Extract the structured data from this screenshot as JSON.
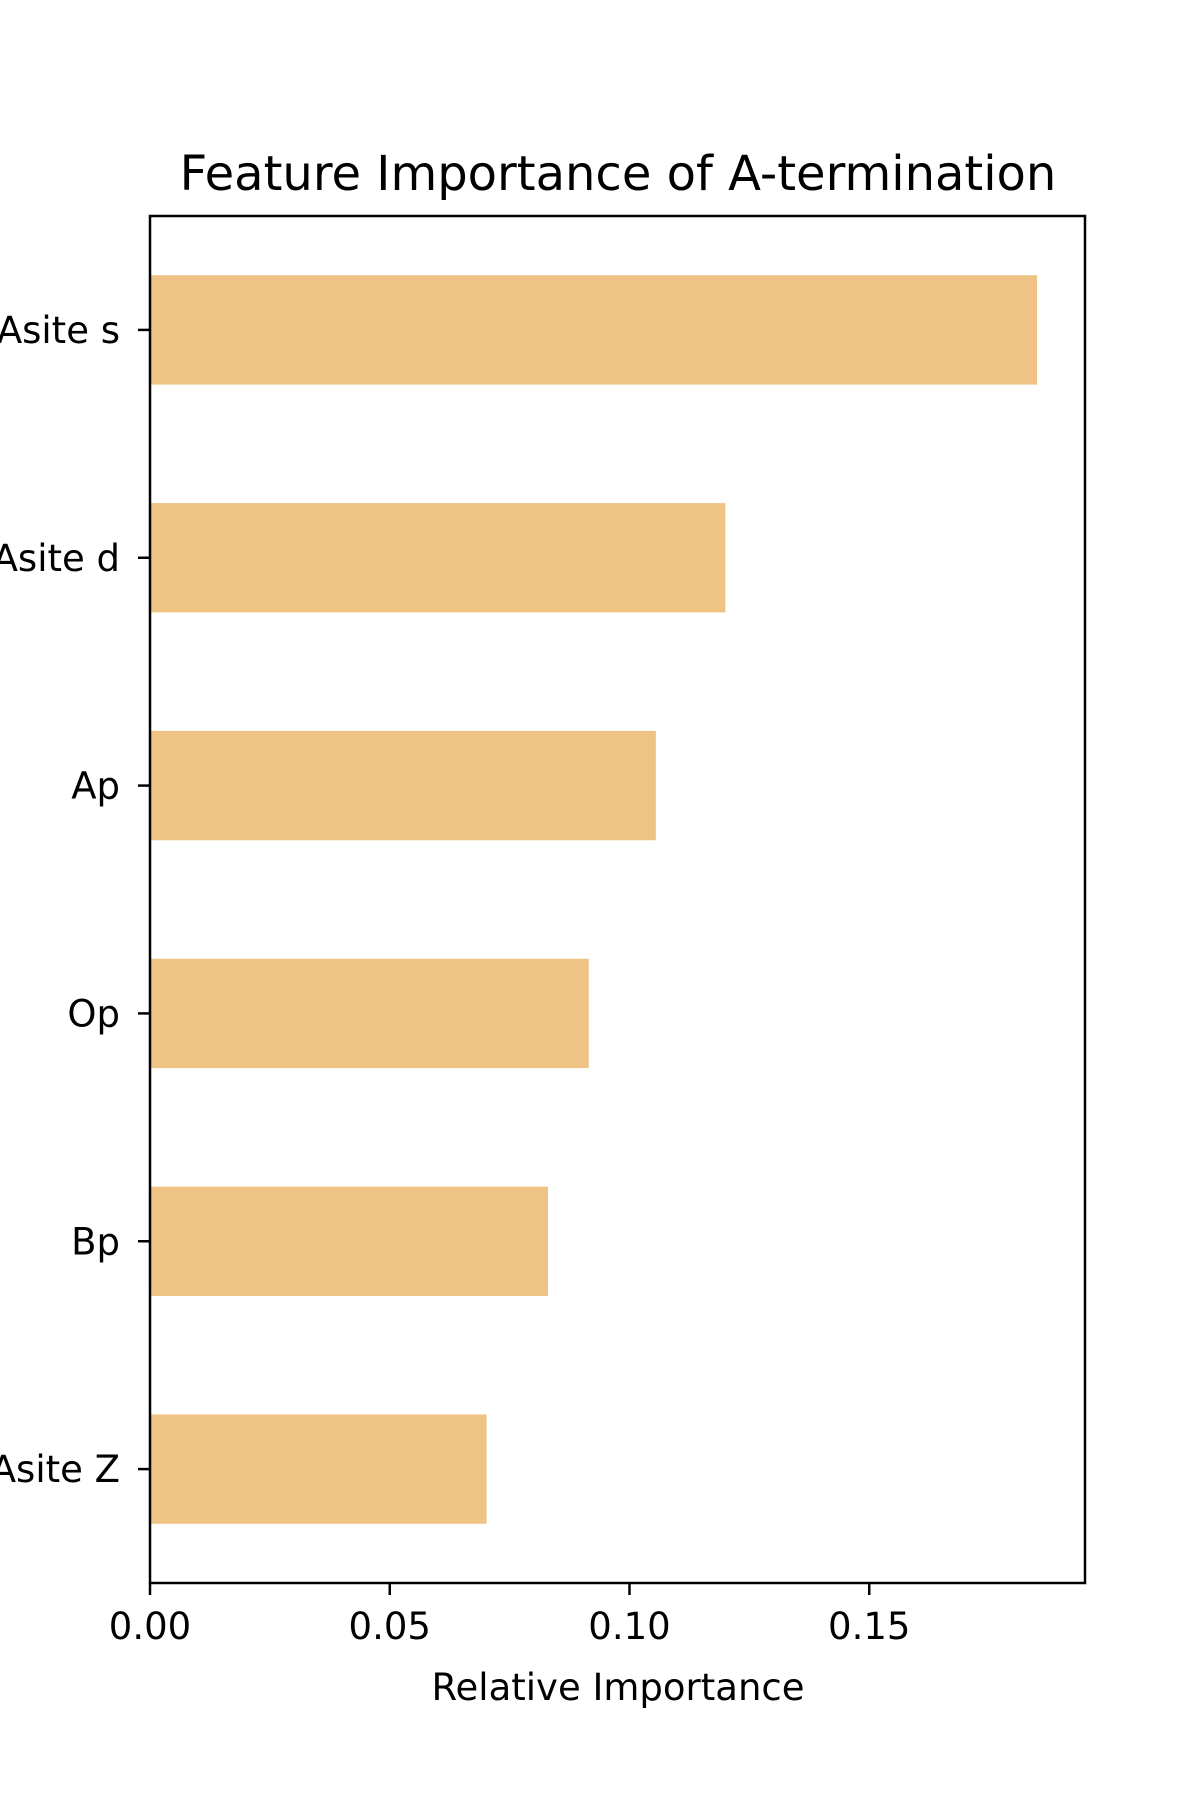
{
  "chart_data": {
    "type": "bar",
    "orientation": "horizontal",
    "title": "Feature Importance of A-termination",
    "xlabel": "Relative Importance",
    "ylabel": "",
    "categories": [
      "Asite s",
      "Asite d",
      "Ap",
      "Op",
      "Bp",
      "Asite Z"
    ],
    "values": [
      0.185,
      0.12,
      0.1055,
      0.0915,
      0.083,
      0.0702
    ],
    "xlim": [
      0,
      0.195
    ],
    "xticks": [
      0,
      0.05,
      0.1,
      0.15
    ],
    "xtick_labels": [
      "0.00",
      "0.05",
      "0.10",
      "0.15"
    ],
    "bar_color": "#eec384",
    "grid": false,
    "legend": "none"
  }
}
